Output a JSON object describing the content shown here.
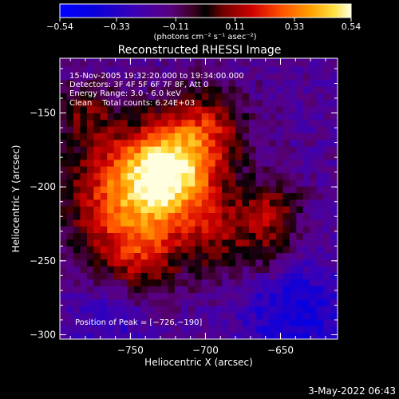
{
  "chart_data": {
    "type": "heatmap",
    "title": "Reconstructed RHESSI Image",
    "xlabel": "Heliocentric X (arcsec)",
    "ylabel": "Heliocentric Y (arcsec)",
    "xlim": [
      -797,
      -612
    ],
    "ylim": [
      -303,
      -113
    ],
    "x_ticks": [
      {
        "value": -750,
        "label": "−750"
      },
      {
        "value": -700,
        "label": "−700"
      },
      {
        "value": -650,
        "label": "−650"
      }
    ],
    "y_ticks": [
      {
        "value": -150,
        "label": "−150"
      },
      {
        "value": -200,
        "label": "−200"
      },
      {
        "value": -250,
        "label": "−250"
      },
      {
        "value": -300,
        "label": "−300"
      }
    ],
    "colorbar": {
      "range": [
        -0.54,
        0.54
      ],
      "ticks": [
        {
          "value": -0.54,
          "label": "−0.54"
        },
        {
          "value": -0.33,
          "label": "−0.33"
        },
        {
          "value": -0.11,
          "label": "−0.11"
        },
        {
          "value": 0.11,
          "label": "0.11"
        },
        {
          "value": 0.33,
          "label": "0.33"
        },
        {
          "value": 0.54,
          "label": "0.54"
        }
      ],
      "unit_label": "(photons cm⁻² s⁻¹ asec⁻²)"
    },
    "annotations": {
      "time_range": "15-Nov-2005 19:32:20.000 to 19:34:00.000",
      "detectors": "Detectors: 3F 4F 5F 6F 7F 8F, Att 0",
      "energy_range": "Energy Range: 3.0 - 6.0 keV",
      "algorithm_counts": "Clean    Total counts: 6.24E+03",
      "peak_position": "Position of Peak = [−726,−190]"
    },
    "peak": {
      "x": -726,
      "y": -190,
      "value": 0.54
    }
  },
  "footer": {
    "date": "3-May-2022 06:43"
  }
}
